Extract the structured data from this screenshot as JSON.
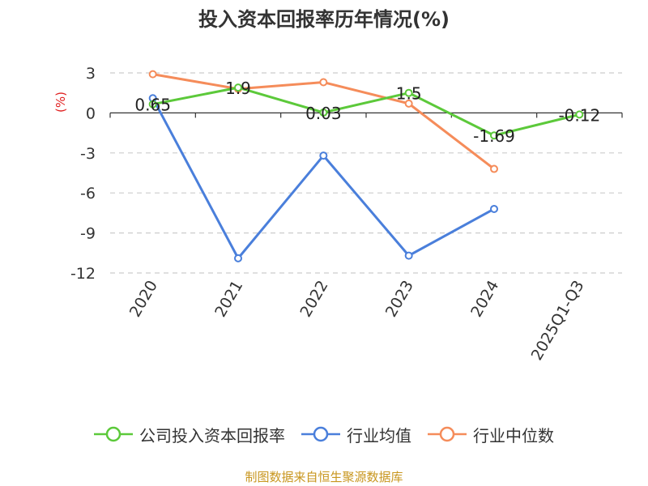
{
  "chart_data": {
    "type": "line",
    "title": "投入资本回报率历年情况(%)",
    "ylabel": "(%)",
    "categories": [
      "2020",
      "2021",
      "2022",
      "2023",
      "2024",
      "2025Q1-Q3"
    ],
    "ylim": [
      -12,
      3
    ],
    "yticks": [
      3,
      0,
      -3,
      -6,
      -9,
      -12
    ],
    "grid": true,
    "legend_position": "bottom",
    "series": [
      {
        "name": "公司投入资本回报率",
        "color": "#5cc93a",
        "values": [
          0.65,
          1.9,
          0.03,
          1.5,
          -1.69,
          -0.12
        ],
        "labels": [
          "0.65",
          "1.9",
          "0.03",
          "1.5",
          "-1.69",
          "-0.12"
        ]
      },
      {
        "name": "行业均值",
        "color": "#4a7fdb",
        "values": [
          1.1,
          -10.9,
          -3.2,
          -10.7,
          -7.2,
          null
        ]
      },
      {
        "name": "行业中位数",
        "color": "#f58c5a",
        "values": [
          2.9,
          1.8,
          2.3,
          0.7,
          -4.2,
          null
        ]
      }
    ]
  },
  "source": "制图数据来自恒生聚源数据库"
}
